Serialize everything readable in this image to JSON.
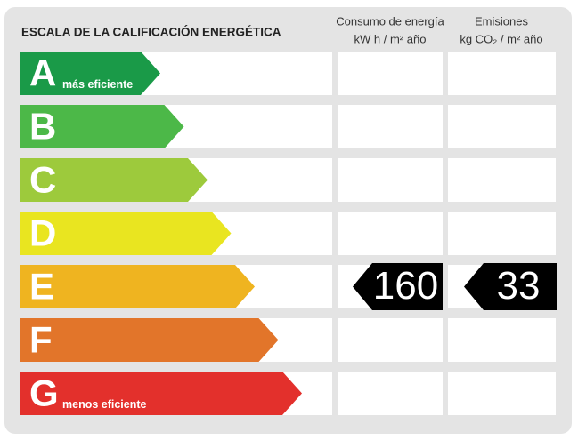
{
  "title": "ESCALA DE LA CALIFICACIÓN ENERGÉTICA",
  "columns": [
    {
      "name": "Consumo de energía",
      "unit": "kW h  / m² año"
    },
    {
      "name": "Emisiones",
      "unit": "kg CO₂  / m² año"
    }
  ],
  "rows": [
    {
      "letter": "A",
      "note": "más eficiente",
      "color": "#1a9a48"
    },
    {
      "letter": "B",
      "color": "#4cb848"
    },
    {
      "letter": "C",
      "color": "#9dca3c"
    },
    {
      "letter": "D",
      "color": "#e9e520"
    },
    {
      "letter": "E",
      "color": "#efb420",
      "energy": 160,
      "emissions": 33
    },
    {
      "letter": "F",
      "color": "#e2752a"
    },
    {
      "letter": "G",
      "note": "menos eficiente",
      "color": "#e3302c"
    }
  ]
}
